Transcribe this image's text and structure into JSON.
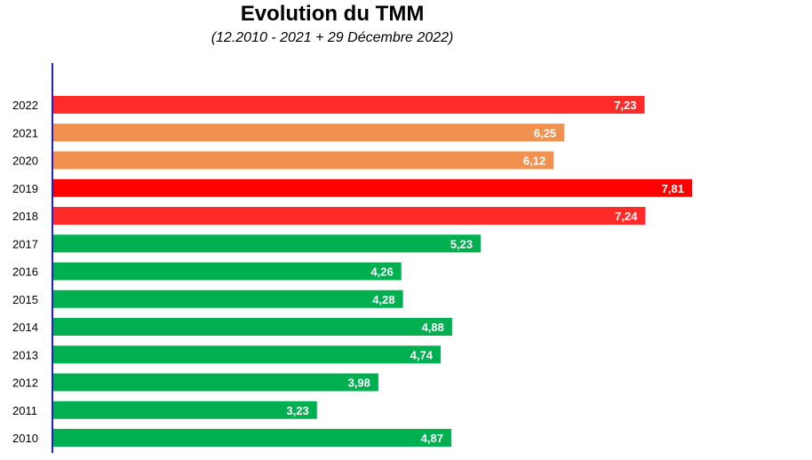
{
  "chart_data": {
    "type": "bar",
    "orientation": "horizontal",
    "title": "Evolution du TMM",
    "subtitle": "(12.2010 - 2021 + 29 Décembre 2022)",
    "categories": [
      "2022",
      "2021",
      "2020",
      "2019",
      "2018",
      "2017",
      "2016",
      "2015",
      "2014",
      "2013",
      "2012",
      "2011",
      "2010"
    ],
    "values": [
      7.23,
      6.25,
      6.12,
      7.81,
      7.24,
      5.23,
      4.26,
      4.28,
      4.88,
      4.74,
      3.98,
      3.23,
      4.87
    ],
    "data_labels": [
      "7,23",
      "6,25",
      "6,12",
      "7,81",
      "7,24",
      "5,23",
      "4,26",
      "4,28",
      "4,88",
      "4,74",
      "3,98",
      "3,23",
      "4,87"
    ],
    "colors": [
      "#ff2a2a",
      "#f09150",
      "#f09150",
      "#ff0000",
      "#ff2a2a",
      "#00b050",
      "#00b050",
      "#00b050",
      "#00b050",
      "#00b050",
      "#00b050",
      "#00b050",
      "#00b050"
    ],
    "axis_color": "#2020c0",
    "xlim": [
      0,
      7.81
    ],
    "grid": false,
    "legend": "none"
  }
}
